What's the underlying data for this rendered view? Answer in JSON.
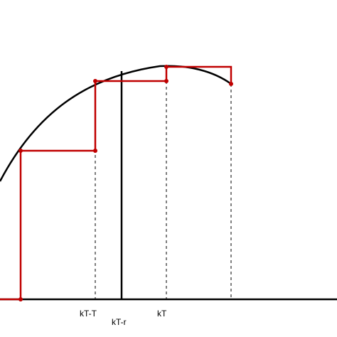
{
  "diagram": {
    "labels": {
      "kT_minus_T": "kT-T",
      "kT_minus_r": "kT-r",
      "kT": "kT"
    },
    "colors": {
      "curve": "#000000",
      "step": "#c00000",
      "axis": "#000000",
      "dashed": "#000000"
    }
  }
}
